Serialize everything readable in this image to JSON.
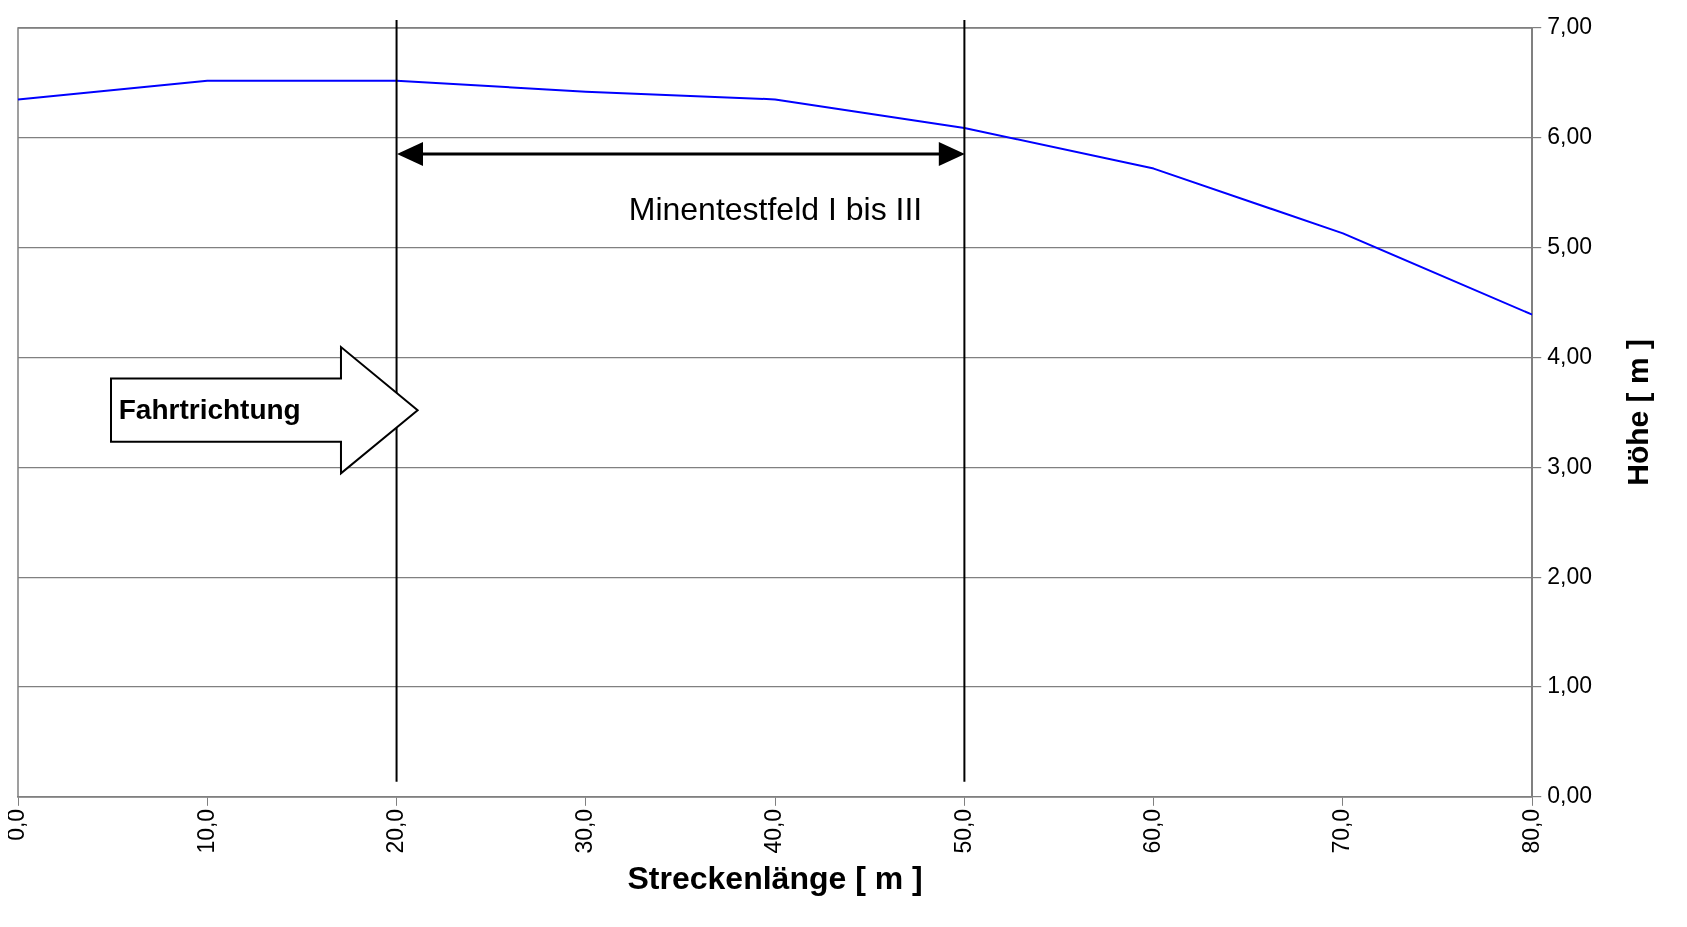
{
  "chart_data": {
    "type": "line",
    "xlabel": "Streckenlänge [ m ]",
    "ylabel": "Höhe [ m ]",
    "x": [
      0,
      10,
      20,
      30,
      40,
      50,
      60,
      70,
      80
    ],
    "series": [
      {
        "color": "#0000ff",
        "values": [
          6.35,
          6.52,
          6.52,
          6.42,
          6.35,
          6.09,
          5.72,
          5.13,
          4.39
        ]
      }
    ],
    "xlim": [
      0,
      80
    ],
    "xticks": [
      {
        "value": 0,
        "label": "0,0"
      },
      {
        "value": 10,
        "label": "10,0"
      },
      {
        "value": 20,
        "label": "20,0"
      },
      {
        "value": 30,
        "label": "30,0"
      },
      {
        "value": 40,
        "label": "40,0"
      },
      {
        "value": 50,
        "label": "50,0"
      },
      {
        "value": 60,
        "label": "60,0"
      },
      {
        "value": 70,
        "label": "70,0"
      },
      {
        "value": 80,
        "label": "80,0"
      }
    ],
    "ylim": [
      0,
      7
    ],
    "yticks": [
      {
        "value": 0,
        "label": "0,00"
      },
      {
        "value": 1,
        "label": "1,00"
      },
      {
        "value": 2,
        "label": "2,00"
      },
      {
        "value": 3,
        "label": "3,00"
      },
      {
        "value": 4,
        "label": "4,00"
      },
      {
        "value": 5,
        "label": "5,00"
      },
      {
        "value": 6,
        "label": "6,00"
      },
      {
        "value": 7,
        "label": "7,00"
      }
    ],
    "grid": "y",
    "legend": false,
    "ref_lines": [
      {
        "axis": "x",
        "value": 20,
        "color": "#000000"
      },
      {
        "axis": "x",
        "value": 50,
        "color": "#000000"
      }
    ],
    "annotations": [
      "Minentestfeld I bis III",
      "Fahrtrichtung"
    ]
  }
}
